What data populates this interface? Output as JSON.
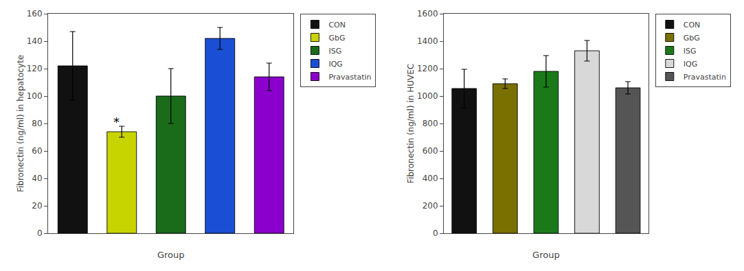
{
  "chart_data": [
    {
      "type": "bar",
      "categories": [
        "CON",
        "GbG",
        "ISG",
        "IQG",
        "Pravastatin"
      ],
      "values": [
        122,
        74,
        100,
        142,
        114
      ],
      "errors": [
        25,
        4,
        20,
        8,
        10
      ],
      "colors": [
        "#111111",
        "#c8d400",
        "#1a6b1a",
        "#1a4ed4",
        "#8b00cc"
      ],
      "ylabel": "Fibronectin (ng/ml) in hepatocyte",
      "xlabel": "Group",
      "ylim": [
        0,
        160
      ],
      "yticks": [
        0,
        20,
        40,
        60,
        80,
        100,
        120,
        140,
        160
      ],
      "grid": false,
      "legend": "right",
      "tick_labels": "y",
      "annotations": [
        {
          "text": "*",
          "category": "GbG"
        }
      ]
    },
    {
      "type": "bar",
      "categories": [
        "CON",
        "GbG",
        "ISG",
        "IQG",
        "Pravastatin"
      ],
      "values": [
        1055,
        1090,
        1180,
        1330,
        1060
      ],
      "errors": [
        140,
        35,
        115,
        75,
        45
      ],
      "colors": [
        "#111111",
        "#7a7000",
        "#1a7a1a",
        "#d8d8d8",
        "#555555"
      ],
      "ylabel": "Fibronectin (ng/ml) in HUVEC",
      "xlabel": "Group",
      "ylim": [
        0,
        1600
      ],
      "yticks": [
        0,
        200,
        400,
        600,
        800,
        1000,
        1200,
        1400,
        1600
      ],
      "grid": false,
      "legend": "right",
      "tick_labels": "y"
    }
  ]
}
